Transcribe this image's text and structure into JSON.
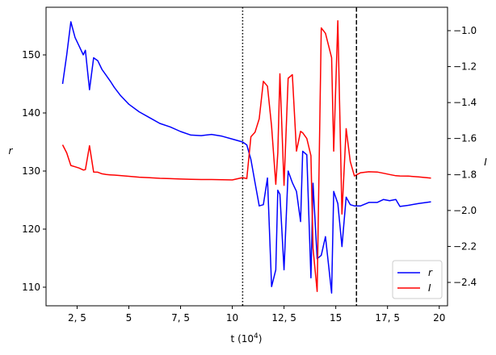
{
  "chart_data": {
    "type": "line",
    "xlabel": "t (10",
    "xlabel_exp": "4",
    "xlabel_close": ")",
    "ylabel_left": "r",
    "ylabel_right": "I",
    "xlim": [
      1.0,
      20.4
    ],
    "ylim_left": [
      106.8,
      158.2
    ],
    "ylim_right": [
      -2.53,
      -0.87
    ],
    "x_ticks": [
      2.5,
      5,
      7.5,
      10,
      12.5,
      15,
      17.5,
      20
    ],
    "x_tick_labels": [
      "2, 5",
      "5",
      "7, 5",
      "10",
      "12, 5",
      "15",
      "17, 5",
      "20"
    ],
    "y_left_ticks": [
      110,
      120,
      130,
      140,
      150
    ],
    "y_left_tick_labels": [
      "110",
      "120",
      "130",
      "140",
      "150"
    ],
    "y_right_ticks": [
      -2.4,
      -2.2,
      -2.0,
      -1.8,
      -1.6,
      -1.4,
      -1.2,
      -1.0
    ],
    "y_right_tick_labels": [
      "−2.4",
      "−2.2",
      "−2.0",
      "−1.8",
      "−1.6",
      "−1.4",
      "−1.2",
      "−1.0"
    ],
    "vlines": [
      {
        "x": 10.5,
        "style": "dotted"
      },
      {
        "x": 16.0,
        "style": "dashed"
      }
    ],
    "legend_position": "lower-right",
    "series": [
      {
        "name": "r",
        "axis": "left",
        "color": "#0000ff",
        "x": [
          1.8,
          2.0,
          2.2,
          2.4,
          2.6,
          2.8,
          2.9,
          3.1,
          3.3,
          3.5,
          3.7,
          3.9,
          4.1,
          4.3,
          4.6,
          5.0,
          5.5,
          6.0,
          6.5,
          7.0,
          7.5,
          8.0,
          8.5,
          9.0,
          9.5,
          10.0,
          10.5,
          10.7,
          10.9,
          11.1,
          11.3,
          11.5,
          11.7,
          11.9,
          12.1,
          12.2,
          12.3,
          12.5,
          12.7,
          12.9,
          13.1,
          13.3,
          13.4,
          13.6,
          13.8,
          13.9,
          14.1,
          14.3,
          14.5,
          14.8,
          14.9,
          15.1,
          15.3,
          15.5,
          15.7,
          15.9,
          16.2,
          16.6,
          17.0,
          17.3,
          17.6,
          17.9,
          18.1,
          18.5,
          19.0,
          19.6
        ],
        "y": [
          145.0,
          150.0,
          155.7,
          153.0,
          151.5,
          150.0,
          150.8,
          144.0,
          149.5,
          149.0,
          147.5,
          146.5,
          145.5,
          144.4,
          143.0,
          141.5,
          140.2,
          139.2,
          138.2,
          137.6,
          136.8,
          136.2,
          136.1,
          136.3,
          136.0,
          135.5,
          135.0,
          134.5,
          132.0,
          128.0,
          124.0,
          124.2,
          128.8,
          110.1,
          113.0,
          126.7,
          126.0,
          113.0,
          130.0,
          128.0,
          126.5,
          121.3,
          133.4,
          132.8,
          111.6,
          127.9,
          114.9,
          115.5,
          118.7,
          109.0,
          126.5,
          124.4,
          117.0,
          125.5,
          124.2,
          124.0,
          124.0,
          124.6,
          124.6,
          125.1,
          124.9,
          125.1,
          123.9,
          124.1,
          124.4,
          124.7
        ]
      },
      {
        "name": "I",
        "axis": "right",
        "color": "#ff0000",
        "x": [
          1.8,
          2.0,
          2.2,
          2.4,
          2.6,
          2.8,
          2.9,
          3.1,
          3.3,
          3.5,
          3.7,
          3.9,
          4.1,
          4.3,
          4.6,
          5.0,
          5.5,
          6.0,
          6.5,
          7.0,
          7.5,
          8.0,
          8.5,
          9.0,
          9.5,
          10.0,
          10.5,
          10.7,
          10.9,
          11.1,
          11.3,
          11.5,
          11.7,
          11.9,
          12.1,
          12.2,
          12.3,
          12.5,
          12.7,
          12.9,
          13.1,
          13.3,
          13.4,
          13.6,
          13.8,
          13.9,
          14.1,
          14.3,
          14.5,
          14.8,
          14.9,
          15.1,
          15.3,
          15.5,
          15.7,
          15.9,
          16.2,
          16.6,
          17.0,
          17.3,
          17.6,
          17.9,
          18.1,
          18.5,
          19.0,
          19.6
        ],
        "y": [
          -1.635,
          -1.68,
          -1.75,
          -1.757,
          -1.764,
          -1.775,
          -1.773,
          -1.64,
          -1.786,
          -1.787,
          -1.796,
          -1.8,
          -1.802,
          -1.803,
          -1.806,
          -1.81,
          -1.815,
          -1.818,
          -1.821,
          -1.823,
          -1.825,
          -1.827,
          -1.828,
          -1.828,
          -1.829,
          -1.83,
          -1.817,
          -1.823,
          -1.59,
          -1.565,
          -1.49,
          -1.282,
          -1.309,
          -1.532,
          -1.855,
          -1.68,
          -1.24,
          -1.86,
          -1.265,
          -1.245,
          -1.67,
          -1.56,
          -1.568,
          -1.6,
          -1.695,
          -2.21,
          -2.45,
          -0.985,
          -1.015,
          -1.15,
          -1.67,
          -0.945,
          -2.02,
          -1.545,
          -1.728,
          -1.808,
          -1.79,
          -1.785,
          -1.786,
          -1.793,
          -1.8,
          -1.807,
          -1.808,
          -1.809,
          -1.813,
          -1.82
        ]
      }
    ]
  }
}
